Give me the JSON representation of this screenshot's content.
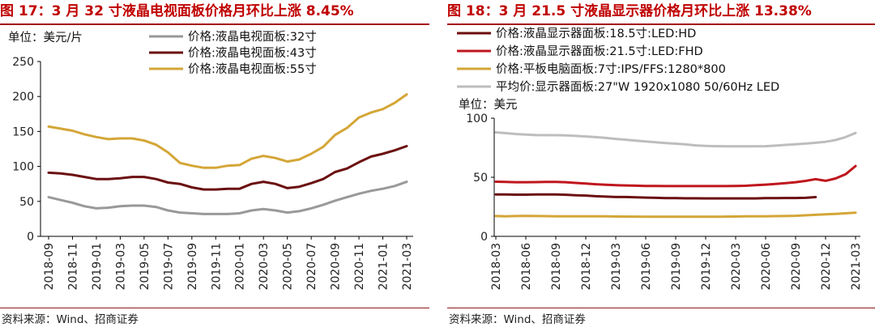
{
  "colors": {
    "title": "#c00000",
    "gray": "#999999",
    "maroon": "#6b0f10",
    "gold": "#d4a637",
    "red": "#c0161d",
    "lightgray": "#bdbdbd"
  },
  "chart_data": [
    {
      "type": "line",
      "title": "图 17：3 月 32 寸液晶电视面板价格月环比上涨 8.45%",
      "unit": "单位：美元/片",
      "source": "资料来源：Wind、招商证券",
      "ylim": [
        0,
        250
      ],
      "yticks": [
        "0",
        "50",
        "100",
        "150",
        "200",
        "250"
      ],
      "xticks": [
        "2018-09",
        "2018-11",
        "2019-01",
        "2019-03",
        "2019-05",
        "2019-07",
        "2019-09",
        "2019-11",
        "2020-01",
        "2020-03",
        "2020-05",
        "2020-07",
        "2020-09",
        "2020-11",
        "2021-01",
        "2021-03"
      ],
      "x": [
        "2018-09",
        "2018-10",
        "2018-11",
        "2018-12",
        "2019-01",
        "2019-02",
        "2019-03",
        "2019-04",
        "2019-05",
        "2019-06",
        "2019-07",
        "2019-08",
        "2019-09",
        "2019-10",
        "2019-11",
        "2019-12",
        "2020-01",
        "2020-02",
        "2020-03",
        "2020-04",
        "2020-05",
        "2020-06",
        "2020-07",
        "2020-08",
        "2020-09",
        "2020-10",
        "2020-11",
        "2020-12",
        "2021-01",
        "2021-02",
        "2021-03"
      ],
      "legend_position": "top",
      "series": [
        {
          "name": "价格:液晶电视面板:32寸",
          "color": "#999999",
          "values": [
            56,
            52,
            48,
            43,
            40,
            41,
            43,
            44,
            44,
            42,
            37,
            34,
            33,
            32,
            32,
            32,
            33,
            37,
            39,
            37,
            34,
            36,
            40,
            45,
            51,
            56,
            61,
            65,
            68,
            72,
            78
          ]
        },
        {
          "name": "价格:液晶电视面板:43寸",
          "color": "#6b0f10",
          "values": [
            91,
            90,
            88,
            85,
            82,
            82,
            83,
            85,
            85,
            82,
            77,
            75,
            70,
            67,
            67,
            68,
            68,
            75,
            78,
            75,
            69,
            71,
            76,
            82,
            92,
            97,
            106,
            114,
            118,
            123,
            129
          ]
        },
        {
          "name": "价格:液晶电视面板:55寸",
          "color": "#d4a637",
          "values": [
            157,
            154,
            151,
            146,
            142,
            139,
            140,
            140,
            137,
            131,
            120,
            105,
            101,
            98,
            98,
            101,
            102,
            111,
            115,
            112,
            107,
            110,
            118,
            128,
            145,
            155,
            170,
            177,
            182,
            191,
            203
          ]
        }
      ]
    },
    {
      "type": "line",
      "title": "图 18：3 月 21.5 寸液晶显示器价格月环比上涨 13.38%",
      "unit": "单位：美元",
      "source": "资料来源：Wind、招商证券",
      "ylim": [
        0,
        100
      ],
      "yticks": [
        "0",
        "50",
        "100"
      ],
      "xticks": [
        "2018-03",
        "2018-06",
        "2018-09",
        "2018-12",
        "2019-03",
        "2019-06",
        "2019-09",
        "2019-12",
        "2020-03",
        "2020-06",
        "2020-09",
        "2020-12",
        "2021-03"
      ],
      "x": [
        "2018-03",
        "2018-04",
        "2018-05",
        "2018-06",
        "2018-07",
        "2018-08",
        "2018-09",
        "2018-10",
        "2018-11",
        "2018-12",
        "2019-01",
        "2019-02",
        "2019-03",
        "2019-04",
        "2019-05",
        "2019-06",
        "2019-07",
        "2019-08",
        "2019-09",
        "2019-10",
        "2019-11",
        "2019-12",
        "2020-01",
        "2020-02",
        "2020-03",
        "2020-04",
        "2020-05",
        "2020-06",
        "2020-07",
        "2020-08",
        "2020-09",
        "2020-10",
        "2020-11",
        "2020-12",
        "2021-01",
        "2021-02",
        "2021-03"
      ],
      "legend_position": "top",
      "series": [
        {
          "name": "价格:液晶显示器面板:18.5寸:LED:HD",
          "color": "#6b0f10",
          "values": [
            35.5,
            35.4,
            35.3,
            35.3,
            35.4,
            35.4,
            35.4,
            35.2,
            34.8,
            34.5,
            34,
            33.6,
            33.3,
            33.3,
            33,
            32.8,
            32.6,
            32.4,
            32.3,
            32.2,
            32.2,
            32.1,
            32.1,
            32.1,
            32.1,
            32.1,
            32.1,
            32.3,
            32.4,
            32.5,
            32.5,
            32.6,
            33.2,
            null,
            null,
            null,
            null
          ]
        },
        {
          "name": "价格:液晶显示器面板:21.5寸:LED:FHD",
          "color": "#c0161d",
          "values": [
            46.2,
            46,
            45.8,
            45.8,
            45.9,
            46,
            46,
            45.8,
            45.2,
            44.7,
            44.1,
            43.6,
            43.3,
            43.1,
            42.9,
            42.7,
            42.6,
            42.5,
            42.5,
            42.5,
            42.5,
            42.5,
            42.5,
            42.5,
            42.6,
            42.8,
            43.3,
            43.8,
            44.4,
            45,
            45.8,
            46.9,
            48.4,
            47,
            49,
            52.5,
            59.5
          ]
        },
        {
          "name": "价格:平板电脑面板:7寸:IPS/FFS:1280*800",
          "color": "#d4a637",
          "values": [
            17.2,
            17,
            17.2,
            17.3,
            17.2,
            17.1,
            17,
            16.9,
            16.9,
            16.9,
            16.9,
            16.9,
            16.8,
            16.7,
            16.7,
            16.6,
            16.6,
            16.6,
            16.6,
            16.6,
            16.6,
            16.6,
            16.6,
            16.7,
            16.8,
            16.9,
            17,
            17,
            17.1,
            17.2,
            17.4,
            17.8,
            18.2,
            18.6,
            19,
            19.5,
            20
          ]
        },
        {
          "name": "平均价:显示器面板:27\"W 1920x1080 50/60Hz LED",
          "color": "#bdbdbd",
          "values": [
            88,
            87.3,
            86.6,
            86.1,
            85.7,
            85.6,
            85.6,
            85.4,
            85,
            84.5,
            84,
            83.3,
            82.5,
            81.8,
            81,
            80.3,
            79.6,
            79,
            78.4,
            77.8,
            77,
            76.5,
            76.3,
            76.2,
            76.2,
            76.2,
            76.2,
            76.3,
            76.8,
            77.4,
            77.9,
            78.5,
            79.2,
            80,
            81.5,
            84,
            87.5
          ]
        }
      ]
    }
  ]
}
